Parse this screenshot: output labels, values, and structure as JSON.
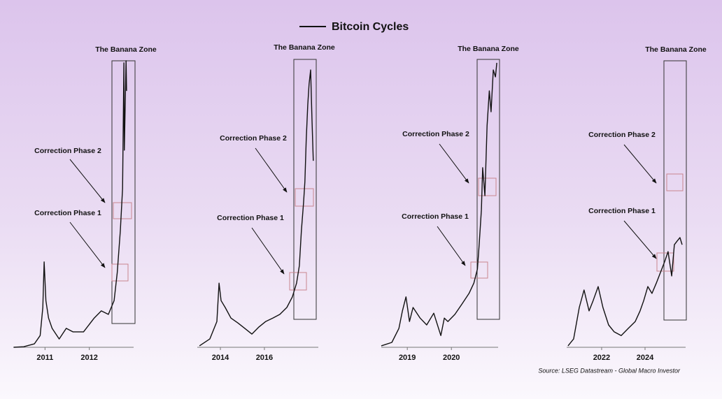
{
  "legend": {
    "label": "Bitcoin Cycles",
    "color": "#111111"
  },
  "source": "Source: LSEG Datastream - Global Macro Investor",
  "chart_data": [
    {
      "type": "line",
      "color": "#111111",
      "ylim": [
        0,
        100
      ],
      "xlim": [
        2010.3,
        2013.0
      ],
      "xticks": [
        2011,
        2012
      ],
      "annotations": {
        "zone": "The Banana Zone",
        "phase_2": "Correction Phase 2",
        "phase_1": "Correction Phase 1"
      },
      "x": [
        2010.29,
        2010.52,
        2010.76,
        2010.89,
        2010.95,
        2010.98,
        2011.02,
        2011.08,
        2011.16,
        2011.32,
        2011.48,
        2011.63,
        2011.87,
        2012.11,
        2012.27,
        2012.43,
        2012.56,
        2012.63,
        2012.7,
        2012.75,
        2012.78,
        2012.79,
        2012.83,
        2012.84
      ],
      "values": [
        0,
        0.2,
        1.2,
        4.1,
        13.9,
        29.8,
        16.3,
        10.2,
        6.6,
        2.9,
        6.6,
        5.4,
        5.4,
        10.2,
        12.7,
        11.5,
        16.3,
        26.1,
        40.7,
        55.4,
        99.3,
        68.8,
        100,
        89.5
      ]
    },
    {
      "type": "line",
      "color": "#111111",
      "ylim": [
        0,
        100
      ],
      "xlim": [
        2012.95,
        2018.45
      ],
      "xticks": [
        2014,
        2016
      ],
      "annotations": {
        "zone": "The Banana Zone",
        "phase_2": "Correction Phase 2",
        "phase_1": "Correction Phase 1"
      },
      "x": [
        2013.05,
        2013.52,
        2013.84,
        2013.94,
        2014.03,
        2014.22,
        2014.48,
        2014.79,
        2015.11,
        2015.43,
        2015.75,
        2016.06,
        2016.38,
        2016.7,
        2017.02,
        2017.27,
        2017.46,
        2017.59,
        2017.68,
        2017.78,
        2017.84,
        2017.9,
        2017.97,
        2018.03,
        2018.1,
        2018.16,
        2018.22
      ],
      "values": [
        0.5,
        2.9,
        9.0,
        22.4,
        16.3,
        13.9,
        10.2,
        8.5,
        6.6,
        4.6,
        7.1,
        9.0,
        10.2,
        11.5,
        13.9,
        17.6,
        22.4,
        28.5,
        40.7,
        50.5,
        57.8,
        72.4,
        84.6,
        91.9,
        96.8,
        79.8,
        65.1
      ]
    },
    {
      "type": "line",
      "color": "#111111",
      "ylim": [
        0,
        100
      ],
      "xlim": [
        2018.41,
        2021.06
      ],
      "xticks": [
        2019,
        2020
      ],
      "annotations": {
        "zone": "The Banana Zone",
        "phase_2": "Correction Phase 2",
        "phase_1": "Correction Phase 1"
      },
      "x": [
        2018.41,
        2018.65,
        2018.81,
        2018.89,
        2018.97,
        2019.05,
        2019.13,
        2019.29,
        2019.44,
        2019.6,
        2019.76,
        2019.84,
        2019.92,
        2020.08,
        2020.24,
        2020.4,
        2020.51,
        2020.59,
        2020.63,
        2020.68,
        2020.71,
        2020.76,
        2020.81,
        2020.86,
        2020.9,
        2020.95,
        2021.0,
        2021.03
      ],
      "values": [
        0.5,
        1.7,
        6.6,
        12.7,
        17.6,
        9.0,
        13.9,
        10.2,
        7.8,
        11.9,
        4.1,
        10.2,
        9.0,
        11.5,
        15.1,
        18.8,
        22.4,
        27.3,
        35.8,
        48.0,
        62.7,
        52.9,
        77.3,
        89.5,
        82.2,
        96.8,
        94.4,
        99.3
      ]
    },
    {
      "type": "line",
      "color": "#111111",
      "ylim": [
        0,
        100
      ],
      "xlim": [
        2020.39,
        2025.87
      ],
      "xticks": [
        2022,
        2024
      ],
      "annotations": {
        "zone": "The Banana Zone",
        "phase_2": "Correction Phase 2",
        "phase_1": "Correction Phase 1"
      },
      "x": [
        2020.45,
        2020.71,
        2020.97,
        2021.19,
        2021.42,
        2021.61,
        2021.84,
        2022.06,
        2022.32,
        2022.58,
        2022.9,
        2023.23,
        2023.55,
        2023.77,
        2023.94,
        2024.13,
        2024.32,
        2024.52,
        2024.71,
        2024.9,
        2025.06,
        2025.23,
        2025.35,
        2025.48,
        2025.61,
        2025.71
      ],
      "values": [
        0.5,
        2.9,
        13.9,
        20.0,
        12.7,
        16.3,
        21.2,
        13.9,
        7.8,
        5.4,
        4.1,
        6.6,
        9.0,
        12.7,
        16.3,
        21.2,
        18.8,
        22.4,
        26.1,
        29.8,
        33.4,
        24.9,
        35.8,
        37.1,
        38.3,
        35.8
      ]
    }
  ]
}
